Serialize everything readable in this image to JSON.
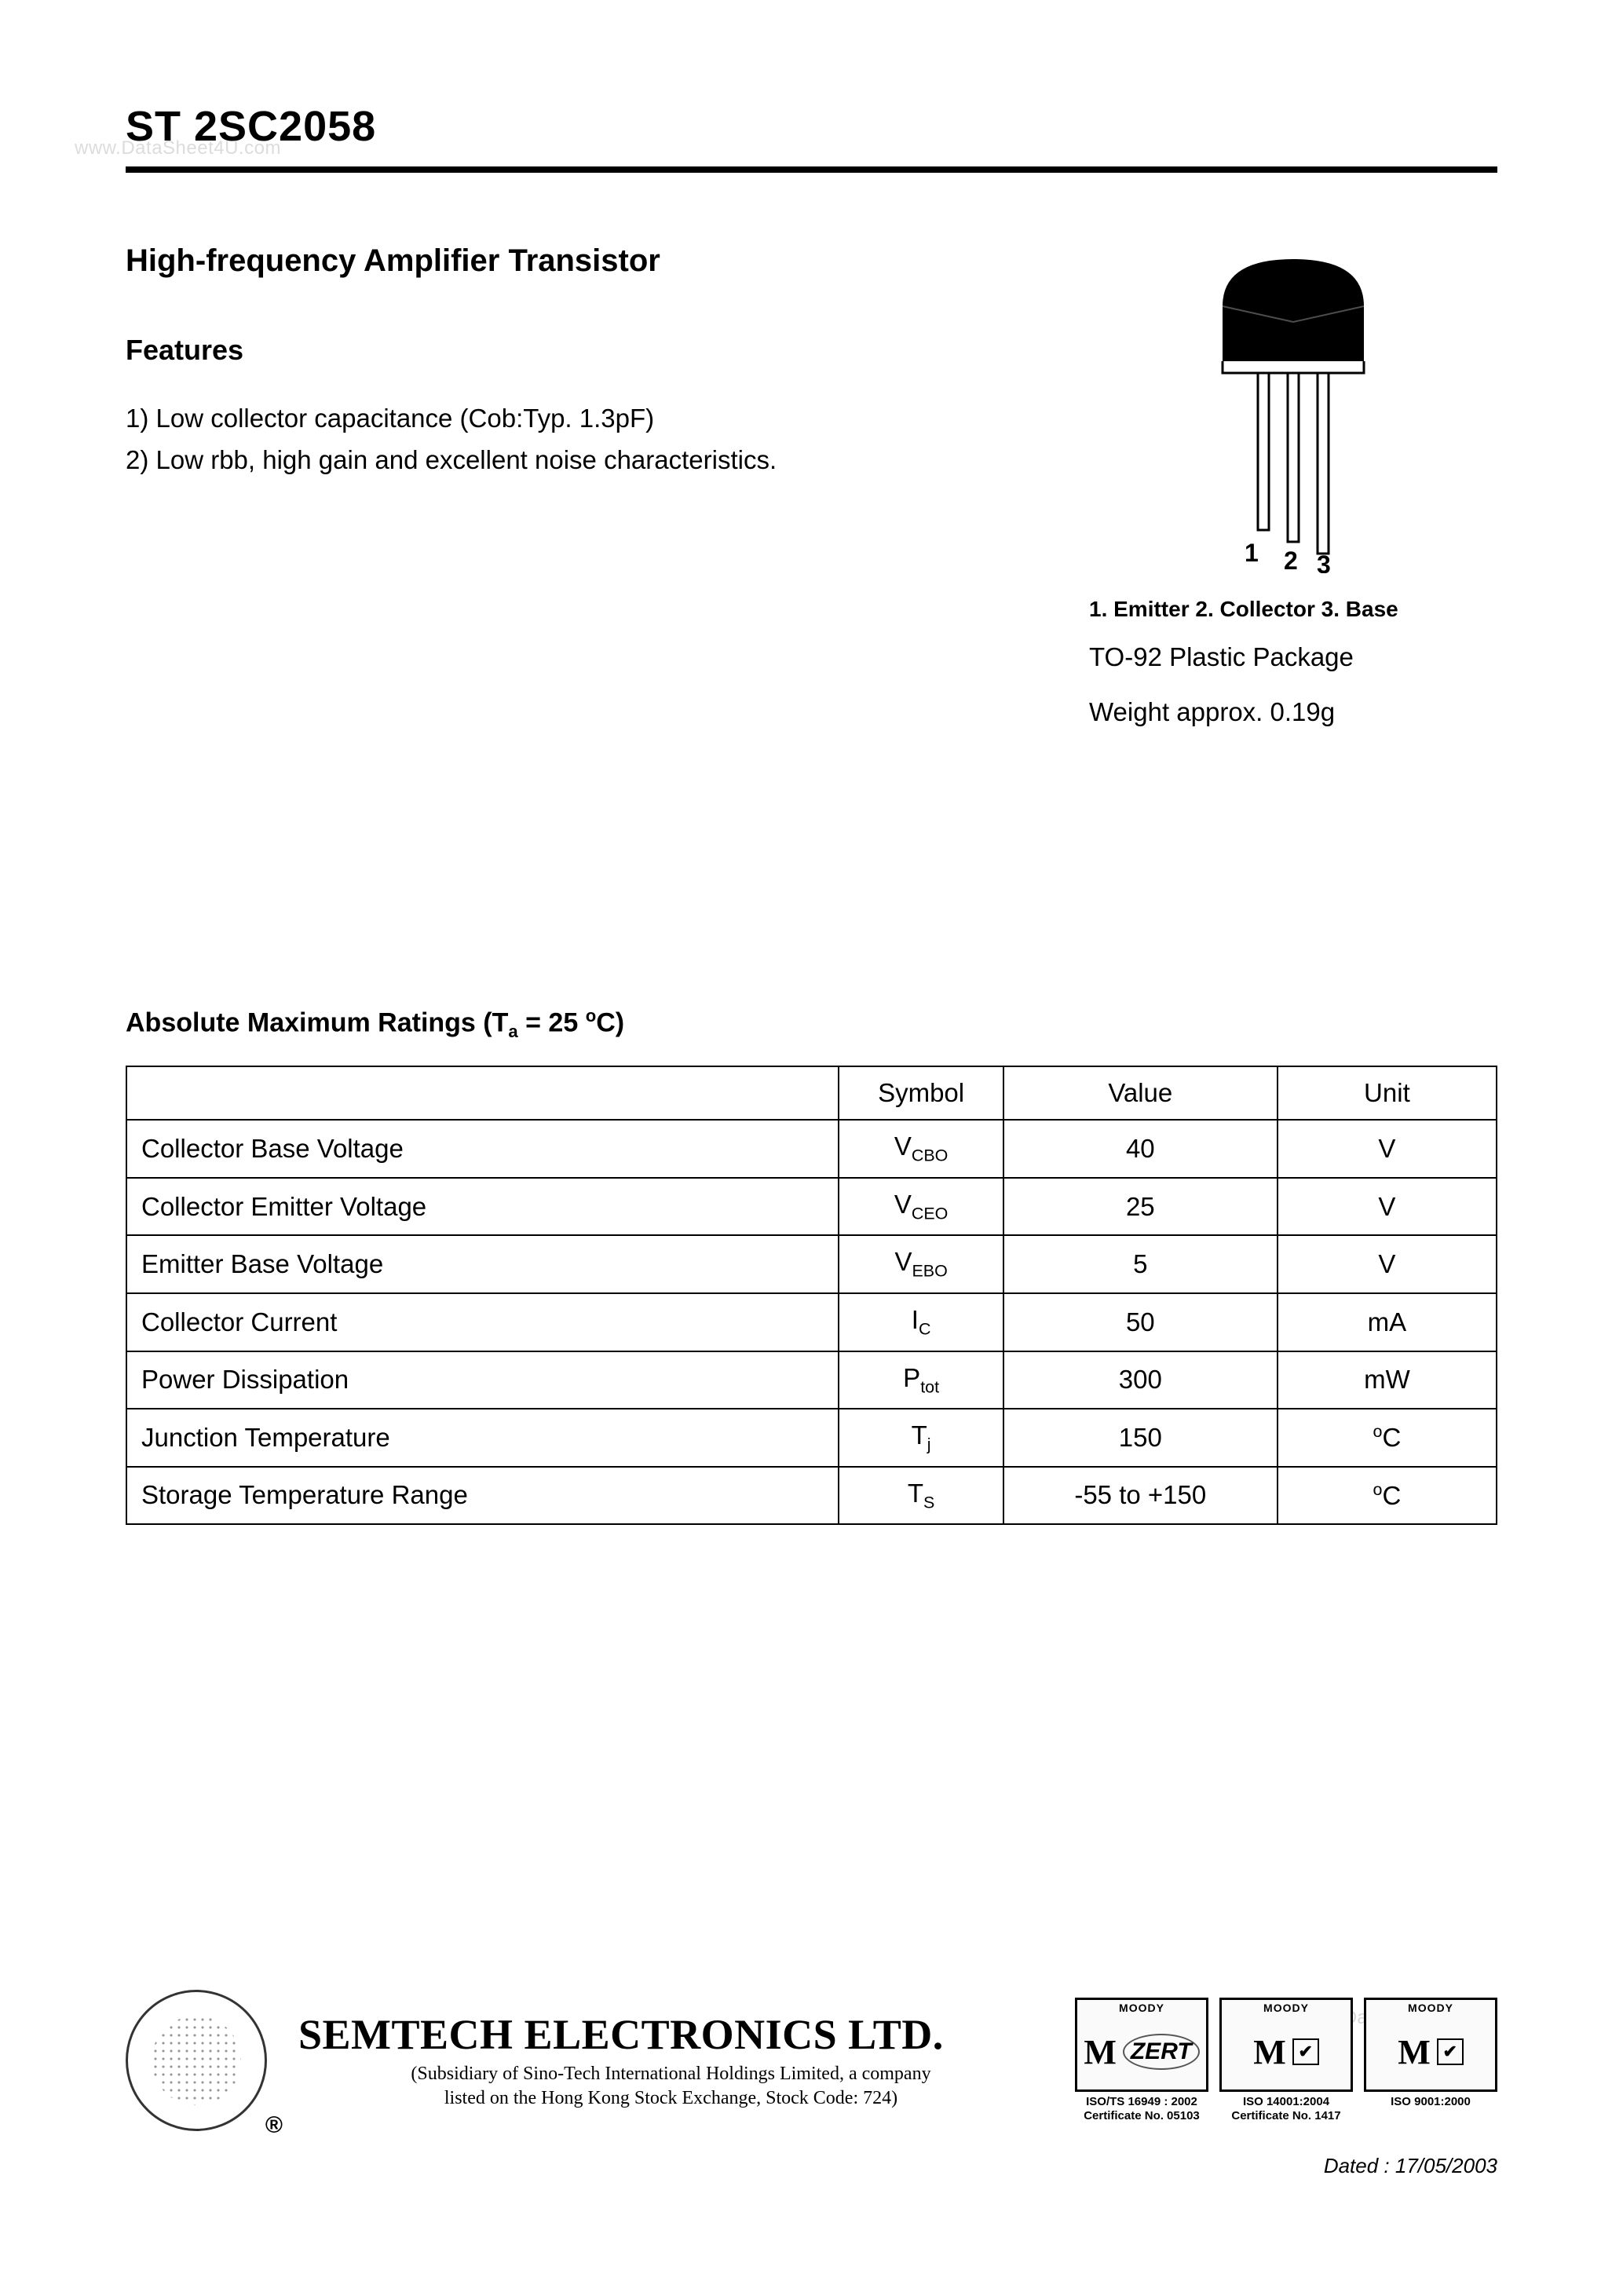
{
  "watermarks": {
    "top": "www.DataSheet4U.com",
    "bottom": "www.DataSheet4U.com"
  },
  "header": {
    "part_number": "ST 2SC2058"
  },
  "title": "High-frequency Amplifier Transistor",
  "features": {
    "heading": "Features",
    "items": [
      "1) Low collector capacitance (Cob:Typ. 1.3pF)",
      "2) Low rbb, high gain and excellent noise characteristics."
    ]
  },
  "package": {
    "pin_labels": {
      "p1": "1",
      "p2": "2",
      "p3": "3"
    },
    "pinout_line": "1. Emitter   2. Collector   3. Base",
    "type_line": "TO-92 Plastic Package",
    "weight_line": "Weight approx. 0.19g",
    "svg": {
      "body_fill": "#000000",
      "lead_stroke": "#000000",
      "label_color": "#000000"
    }
  },
  "ratings": {
    "heading_prefix": "Absolute Maximum Ratings (T",
    "heading_sub": "a",
    "heading_mid": " = 25 ",
    "heading_sup": "o",
    "heading_suffix": "C)",
    "columns": [
      "",
      "Symbol",
      "Value",
      "Unit"
    ],
    "rows": [
      {
        "param": "Collector Base Voltage",
        "sym_base": "V",
        "sym_sub": "CBO",
        "value": "40",
        "unit_pre": "",
        "unit_sup": "",
        "unit_post": "V"
      },
      {
        "param": "Collector Emitter Voltage",
        "sym_base": "V",
        "sym_sub": "CEO",
        "value": "25",
        "unit_pre": "",
        "unit_sup": "",
        "unit_post": "V"
      },
      {
        "param": "Emitter Base Voltage",
        "sym_base": "V",
        "sym_sub": "EBO",
        "value": "5",
        "unit_pre": "",
        "unit_sup": "",
        "unit_post": "V"
      },
      {
        "param": "Collector Current",
        "sym_base": "I",
        "sym_sub": "C",
        "value": "50",
        "unit_pre": "",
        "unit_sup": "",
        "unit_post": "mA"
      },
      {
        "param": "Power Dissipation",
        "sym_base": "P",
        "sym_sub": "tot",
        "value": "300",
        "unit_pre": "",
        "unit_sup": "",
        "unit_post": "mW"
      },
      {
        "param": "Junction Temperature",
        "sym_base": "T",
        "sym_sub": "j",
        "value": "150",
        "unit_pre": "",
        "unit_sup": "o",
        "unit_post": "C"
      },
      {
        "param": "Storage Temperature Range",
        "sym_base": "T",
        "sym_sub": "S",
        "value": "-55 to +150",
        "unit_pre": "",
        "unit_sup": "o",
        "unit_post": "C"
      }
    ]
  },
  "footer": {
    "registered": "®",
    "company": "SEMTECH ELECTRONICS LTD.",
    "subsidiary_l1": "(Subsidiary of Sino-Tech International Holdings Limited, a company",
    "subsidiary_l2": "listed on the Hong Kong Stock Exchange, Stock Code: 724)",
    "certs": [
      {
        "moody": "MOODY",
        "badge": "M",
        "side": "ZERT",
        "caption_l1": "ISO/TS 16949 : 2002",
        "caption_l2": "Certificate No. 05103"
      },
      {
        "moody": "MOODY",
        "badge": "M",
        "side": "✔",
        "caption_l1": "ISO 14001:2004",
        "caption_l2": "Certificate No. 1417"
      },
      {
        "moody": "MOODY",
        "badge": "M",
        "side": "✔",
        "caption_l1": "ISO 9001:2000",
        "caption_l2": ""
      }
    ],
    "dated": "Dated : 17/05/2003"
  },
  "style": {
    "page_bg": "#ffffff",
    "text_color": "#000000",
    "rule_color": "#000000",
    "table_border": "#000000",
    "watermark_color": "#dcdcdc",
    "font_family": "Arial, Helvetica, sans-serif",
    "serif_family": "Times New Roman, Times, serif",
    "part_number_fontsize": 54,
    "title_fontsize": 40,
    "body_fontsize": 33,
    "table_fontsize": 33,
    "company_fontsize": 54
  }
}
